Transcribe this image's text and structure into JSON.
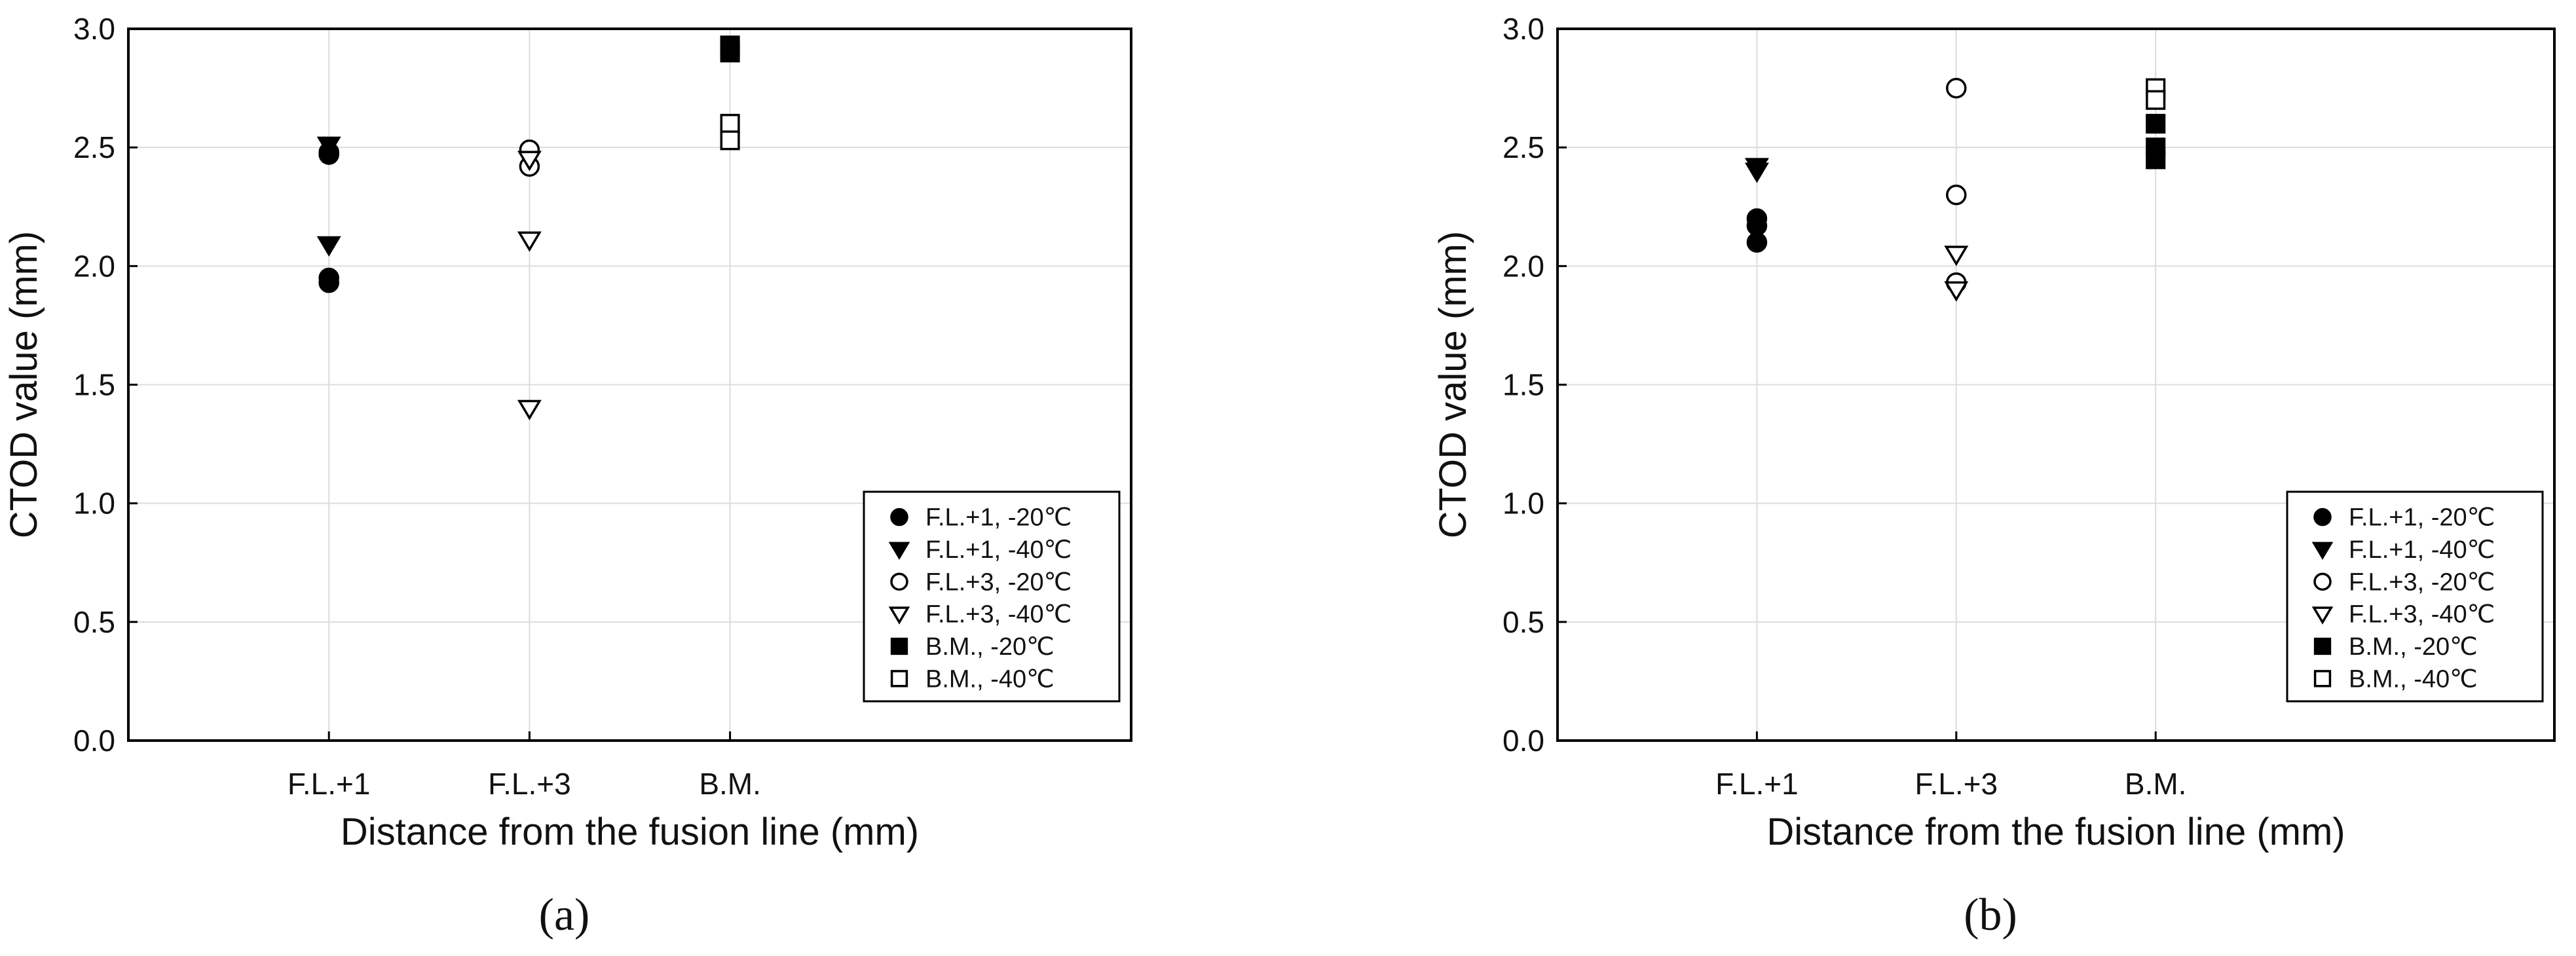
{
  "chart_data": [
    {
      "type": "scatter",
      "panel_label": "(a)",
      "xlabel": "Distance from the fusion line (mm)",
      "ylabel": "CTOD value (mm)",
      "categories": [
        "F.L.+1",
        "F.L.+3",
        "B.M."
      ],
      "ylim": [
        0.0,
        3.0
      ],
      "yticks": [
        "0.0",
        "0.5",
        "1.0",
        "1.5",
        "2.0",
        "2.5",
        "3.0"
      ],
      "grid": true,
      "legend_position": "bottom-right",
      "series": [
        {
          "name": "F.L.+1, -20℃",
          "marker": "filled-circle",
          "points": [
            {
              "category": "F.L.+1",
              "y": 2.47
            },
            {
              "category": "F.L.+1",
              "y": 2.48
            },
            {
              "category": "F.L.+1",
              "y": 1.95
            },
            {
              "category": "F.L.+1",
              "y": 1.93
            }
          ]
        },
        {
          "name": "F.L.+1, -40℃",
          "marker": "filled-triangle-down",
          "points": [
            {
              "category": "F.L.+1",
              "y": 2.51
            },
            {
              "category": "F.L.+1",
              "y": 2.09
            }
          ]
        },
        {
          "name": "F.L.+3, -20℃",
          "marker": "open-circle",
          "points": [
            {
              "category": "F.L.+3",
              "y": 2.49
            },
            {
              "category": "F.L.+3",
              "y": 2.42
            }
          ]
        },
        {
          "name": "F.L.+3, -40℃",
          "marker": "open-triangle-down",
          "points": [
            {
              "category": "F.L.+3",
              "y": 2.45
            },
            {
              "category": "F.L.+3",
              "y": 2.11
            },
            {
              "category": "F.L.+3",
              "y": 1.4
            }
          ]
        },
        {
          "name": "B.M., -20℃",
          "marker": "filled-square",
          "points": [
            {
              "category": "B.M.",
              "y": 2.93
            },
            {
              "category": "B.M.",
              "y": 2.9
            }
          ]
        },
        {
          "name": "B.M., -40℃",
          "marker": "open-square",
          "points": [
            {
              "category": "B.M.",
              "y": 2.6
            },
            {
              "category": "B.M.",
              "y": 2.53
            }
          ]
        }
      ]
    },
    {
      "type": "scatter",
      "panel_label": "(b)",
      "xlabel": "Distance from the fusion line (mm)",
      "ylabel": "CTOD value (mm)",
      "categories": [
        "F.L.+1",
        "F.L.+3",
        "B.M."
      ],
      "ylim": [
        0.0,
        3.0
      ],
      "yticks": [
        "0.0",
        "0.5",
        "1.0",
        "1.5",
        "2.0",
        "2.5",
        "3.0"
      ],
      "grid": true,
      "legend_position": "bottom-right",
      "series": [
        {
          "name": "F.L.+1, -20℃",
          "marker": "filled-circle",
          "points": [
            {
              "category": "F.L.+1",
              "y": 2.2
            },
            {
              "category": "F.L.+1",
              "y": 2.17
            },
            {
              "category": "F.L.+1",
              "y": 2.1
            }
          ]
        },
        {
          "name": "F.L.+1, -40℃",
          "marker": "filled-triangle-down",
          "points": [
            {
              "category": "F.L.+1",
              "y": 2.42
            },
            {
              "category": "F.L.+1",
              "y": 2.4
            }
          ]
        },
        {
          "name": "F.L.+3, -20℃",
          "marker": "open-circle",
          "points": [
            {
              "category": "F.L.+3",
              "y": 2.75
            },
            {
              "category": "F.L.+3",
              "y": 2.3
            },
            {
              "category": "F.L.+3",
              "y": 1.93
            }
          ]
        },
        {
          "name": "F.L.+3, -40℃",
          "marker": "open-triangle-down",
          "points": [
            {
              "category": "F.L.+3",
              "y": 2.05
            },
            {
              "category": "F.L.+3",
              "y": 1.9
            }
          ]
        },
        {
          "name": "B.M., -20℃",
          "marker": "filled-square",
          "points": [
            {
              "category": "B.M.",
              "y": 2.6
            },
            {
              "category": "B.M.",
              "y": 2.5
            },
            {
              "category": "B.M.",
              "y": 2.45
            }
          ]
        },
        {
          "name": "B.M., -40℃",
          "marker": "open-square",
          "points": [
            {
              "category": "B.M.",
              "y": 2.75
            },
            {
              "category": "B.M.",
              "y": 2.7
            }
          ]
        }
      ]
    }
  ]
}
